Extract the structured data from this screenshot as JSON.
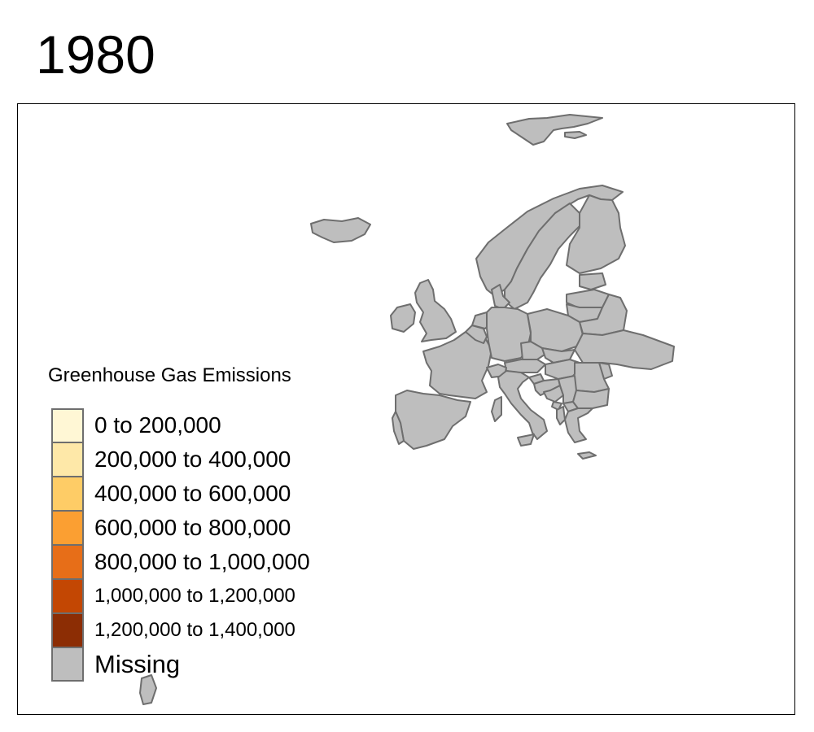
{
  "title": "1980",
  "legend": {
    "title": "Greenhouse Gas Emissions",
    "items": [
      {
        "label": "0 to 200,000",
        "color": "#FFF7D5"
      },
      {
        "label": "200,000 to 400,000",
        "color": "#FEE8A8"
      },
      {
        "label": "400,000 to 600,000",
        "color": "#FECC66"
      },
      {
        "label": "600,000 to 800,000",
        "color": "#FB9F32"
      },
      {
        "label": "800,000 to 1,000,000",
        "color": "#E76E18"
      },
      {
        "label": "1,000,000 to 1,200,000",
        "color": "#C34703"
      },
      {
        "label": "1,200,000 to 1,400,000",
        "color": "#8C2D04"
      },
      {
        "label": "Missing",
        "color": "#BEBEBE"
      }
    ]
  },
  "map": {
    "region": "Europe",
    "all_countries_fill": "#BEBEBE",
    "border_color": "#6E6E6E"
  }
}
